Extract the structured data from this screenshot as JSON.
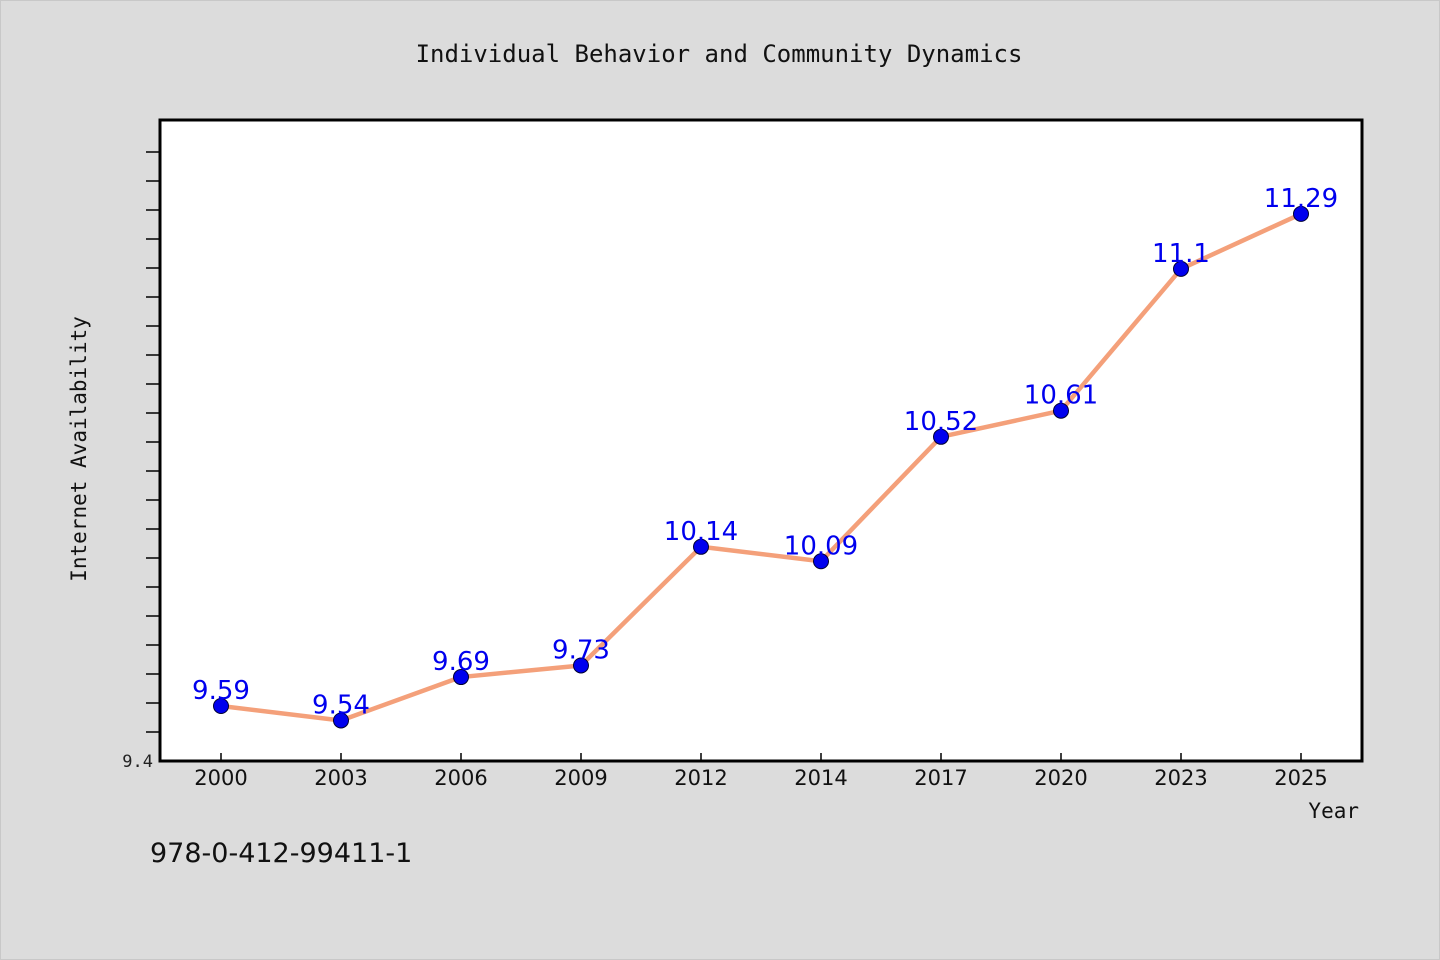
{
  "chart_data": {
    "type": "line",
    "title": "Individual Behavior and Community Dynamics",
    "xlabel": "Year",
    "ylabel": "Internet Availability",
    "categories": [
      "2000",
      "2003",
      "2006",
      "2009",
      "2012",
      "2014",
      "2017",
      "2020",
      "2023",
      "2025"
    ],
    "series": [
      {
        "values": [
          9.59,
          9.54,
          9.69,
          9.73,
          10.14,
          10.09,
          10.52,
          10.61,
          11.1,
          11.29
        ],
        "labels": [
          "9.59",
          "9.54",
          "9.69",
          "9.73",
          "10.14",
          "10.09",
          "10.52",
          "10.61",
          "11.1",
          "11.29"
        ],
        "line_color": "#f4a07a",
        "marker_color": "#0000ee",
        "label_color": "#0000ee"
      }
    ],
    "ylim": [
      9.4,
      11.6
    ],
    "ytick_labels": [
      "9.4"
    ],
    "grid": false,
    "legend": "none"
  },
  "isbn": "978-0-412-99411-1",
  "colors": {
    "background": "#dcdcdc",
    "plot_background": "#ffffff",
    "axis": "#000000"
  }
}
